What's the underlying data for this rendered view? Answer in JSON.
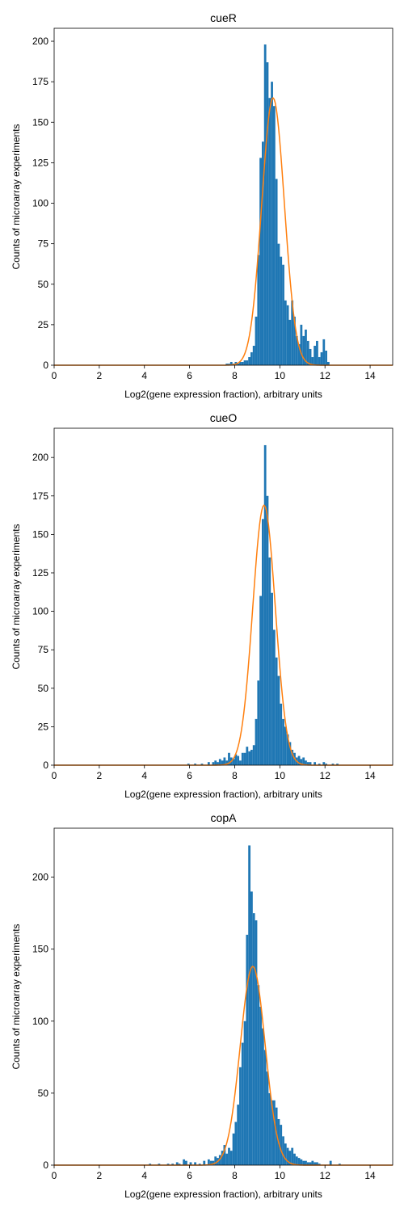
{
  "chart_data": [
    {
      "type": "bar",
      "title": "cueR",
      "xlabel": "Log2(gene expression fraction), arbitrary units",
      "ylabel": "Counts of microarray experiments",
      "xlim": [
        0,
        15
      ],
      "ylim": [
        0,
        208
      ],
      "xticks": [
        0,
        2,
        4,
        6,
        8,
        10,
        12,
        14
      ],
      "yticks": [
        0,
        25,
        50,
        75,
        100,
        125,
        150,
        175,
        200
      ],
      "bar_color": "#1f77b4",
      "curve_color": "#ff7f0e",
      "grid": false,
      "bin_width": 0.1,
      "bins": [
        [
          7.6,
          1
        ],
        [
          7.7,
          1
        ],
        [
          7.8,
          2
        ],
        [
          7.9,
          1
        ],
        [
          8.0,
          2
        ],
        [
          8.1,
          1
        ],
        [
          8.2,
          2
        ],
        [
          8.3,
          2
        ],
        [
          8.4,
          3
        ],
        [
          8.5,
          3
        ],
        [
          8.6,
          5
        ],
        [
          8.7,
          8
        ],
        [
          8.8,
          12
        ],
        [
          8.9,
          30
        ],
        [
          9.0,
          68
        ],
        [
          9.1,
          128
        ],
        [
          9.2,
          138
        ],
        [
          9.3,
          198
        ],
        [
          9.4,
          187
        ],
        [
          9.5,
          165
        ],
        [
          9.6,
          175
        ],
        [
          9.7,
          160
        ],
        [
          9.8,
          115
        ],
        [
          9.9,
          75
        ],
        [
          10.0,
          67
        ],
        [
          10.1,
          62
        ],
        [
          10.2,
          40
        ],
        [
          10.3,
          37
        ],
        [
          10.4,
          28
        ],
        [
          10.5,
          40
        ],
        [
          10.6,
          30
        ],
        [
          10.7,
          18
        ],
        [
          10.8,
          13
        ],
        [
          10.9,
          25
        ],
        [
          11.0,
          18
        ],
        [
          11.1,
          22
        ],
        [
          11.2,
          15
        ],
        [
          11.3,
          10
        ],
        [
          11.4,
          5
        ],
        [
          11.5,
          12
        ],
        [
          11.6,
          15
        ],
        [
          11.7,
          5
        ],
        [
          11.8,
          8
        ],
        [
          11.9,
          16
        ],
        [
          12.0,
          9
        ],
        [
          12.1,
          2
        ]
      ],
      "fit": {
        "kind": "gaussian",
        "mean": 9.7,
        "std": 0.5,
        "peak": 165
      }
    },
    {
      "type": "bar",
      "title": "cueO",
      "xlabel": "Log2(gene expression fraction), arbitrary units",
      "ylabel": "Counts of microarray experiments",
      "xlim": [
        0,
        15
      ],
      "ylim": [
        0,
        219
      ],
      "xticks": [
        0,
        2,
        4,
        6,
        8,
        10,
        12,
        14
      ],
      "yticks": [
        0,
        25,
        50,
        75,
        100,
        125,
        150,
        175,
        200
      ],
      "bar_color": "#1f77b4",
      "curve_color": "#ff7f0e",
      "grid": false,
      "bin_width": 0.1,
      "bins": [
        [
          5.9,
          1
        ],
        [
          6.2,
          1
        ],
        [
          6.5,
          1
        ],
        [
          6.8,
          2
        ],
        [
          7.0,
          2
        ],
        [
          7.1,
          3
        ],
        [
          7.2,
          2
        ],
        [
          7.3,
          4
        ],
        [
          7.4,
          3
        ],
        [
          7.5,
          5
        ],
        [
          7.6,
          3
        ],
        [
          7.7,
          8
        ],
        [
          7.8,
          5
        ],
        [
          7.9,
          4
        ],
        [
          8.0,
          7
        ],
        [
          8.1,
          6
        ],
        [
          8.2,
          3
        ],
        [
          8.3,
          8
        ],
        [
          8.4,
          8
        ],
        [
          8.5,
          12
        ],
        [
          8.6,
          9
        ],
        [
          8.7,
          10
        ],
        [
          8.8,
          13
        ],
        [
          8.9,
          30
        ],
        [
          9.0,
          55
        ],
        [
          9.1,
          110
        ],
        [
          9.2,
          160
        ],
        [
          9.3,
          208
        ],
        [
          9.4,
          175
        ],
        [
          9.5,
          135
        ],
        [
          9.6,
          112
        ],
        [
          9.7,
          88
        ],
        [
          9.8,
          70
        ],
        [
          9.9,
          58
        ],
        [
          10.0,
          40
        ],
        [
          10.1,
          30
        ],
        [
          10.2,
          25
        ],
        [
          10.3,
          20
        ],
        [
          10.4,
          15
        ],
        [
          10.5,
          10
        ],
        [
          10.6,
          8
        ],
        [
          10.7,
          5
        ],
        [
          10.8,
          6
        ],
        [
          10.9,
          4
        ],
        [
          11.0,
          5
        ],
        [
          11.1,
          3
        ],
        [
          11.2,
          2
        ],
        [
          11.3,
          2
        ],
        [
          11.5,
          2
        ],
        [
          11.7,
          1
        ],
        [
          11.9,
          2
        ],
        [
          12.0,
          1
        ],
        [
          12.3,
          1
        ],
        [
          12.5,
          1
        ]
      ],
      "fit": {
        "kind": "gaussian",
        "mean": 9.3,
        "std": 0.5,
        "peak": 169
      }
    },
    {
      "type": "bar",
      "title": "copA",
      "xlabel": "Log2(gene expression fraction), arbitrary units",
      "ylabel": "Counts of microarray experiments",
      "xlim": [
        0,
        15
      ],
      "ylim": [
        0,
        234
      ],
      "xticks": [
        0,
        2,
        4,
        6,
        8,
        10,
        12,
        14
      ],
      "yticks": [
        0,
        50,
        100,
        150,
        200
      ],
      "bar_color": "#1f77b4",
      "curve_color": "#ff7f0e",
      "grid": false,
      "bin_width": 0.1,
      "bins": [
        [
          4.2,
          1
        ],
        [
          4.6,
          1
        ],
        [
          5.0,
          1
        ],
        [
          5.2,
          1
        ],
        [
          5.4,
          2
        ],
        [
          5.5,
          1
        ],
        [
          5.7,
          4
        ],
        [
          5.8,
          3
        ],
        [
          6.0,
          2
        ],
        [
          6.2,
          2
        ],
        [
          6.4,
          1
        ],
        [
          6.6,
          3
        ],
        [
          6.8,
          4
        ],
        [
          6.9,
          3
        ],
        [
          7.0,
          3
        ],
        [
          7.1,
          6
        ],
        [
          7.2,
          5
        ],
        [
          7.3,
          7
        ],
        [
          7.4,
          10
        ],
        [
          7.5,
          14
        ],
        [
          7.6,
          8
        ],
        [
          7.7,
          12
        ],
        [
          7.8,
          10
        ],
        [
          7.9,
          22
        ],
        [
          8.0,
          30
        ],
        [
          8.1,
          42
        ],
        [
          8.2,
          68
        ],
        [
          8.3,
          85
        ],
        [
          8.4,
          100
        ],
        [
          8.5,
          160
        ],
        [
          8.6,
          222
        ],
        [
          8.7,
          190
        ],
        [
          8.8,
          175
        ],
        [
          8.9,
          170
        ],
        [
          9.0,
          125
        ],
        [
          9.1,
          110
        ],
        [
          9.2,
          95
        ],
        [
          9.3,
          80
        ],
        [
          9.4,
          65
        ],
        [
          9.5,
          50
        ],
        [
          9.6,
          45
        ],
        [
          9.7,
          45
        ],
        [
          9.8,
          40
        ],
        [
          9.9,
          32
        ],
        [
          10.0,
          28
        ],
        [
          10.1,
          20
        ],
        [
          10.2,
          15
        ],
        [
          10.3,
          12
        ],
        [
          10.4,
          10
        ],
        [
          10.5,
          12
        ],
        [
          10.6,
          8
        ],
        [
          10.7,
          6
        ],
        [
          10.8,
          5
        ],
        [
          10.9,
          4
        ],
        [
          11.0,
          3
        ],
        [
          11.1,
          3
        ],
        [
          11.2,
          2
        ],
        [
          11.3,
          2
        ],
        [
          11.4,
          3
        ],
        [
          11.5,
          2
        ],
        [
          11.6,
          2
        ],
        [
          11.7,
          1
        ],
        [
          12.2,
          3
        ],
        [
          12.6,
          1
        ]
      ],
      "fit": {
        "kind": "gaussian",
        "mean": 8.8,
        "std": 0.55,
        "peak": 138
      }
    }
  ]
}
